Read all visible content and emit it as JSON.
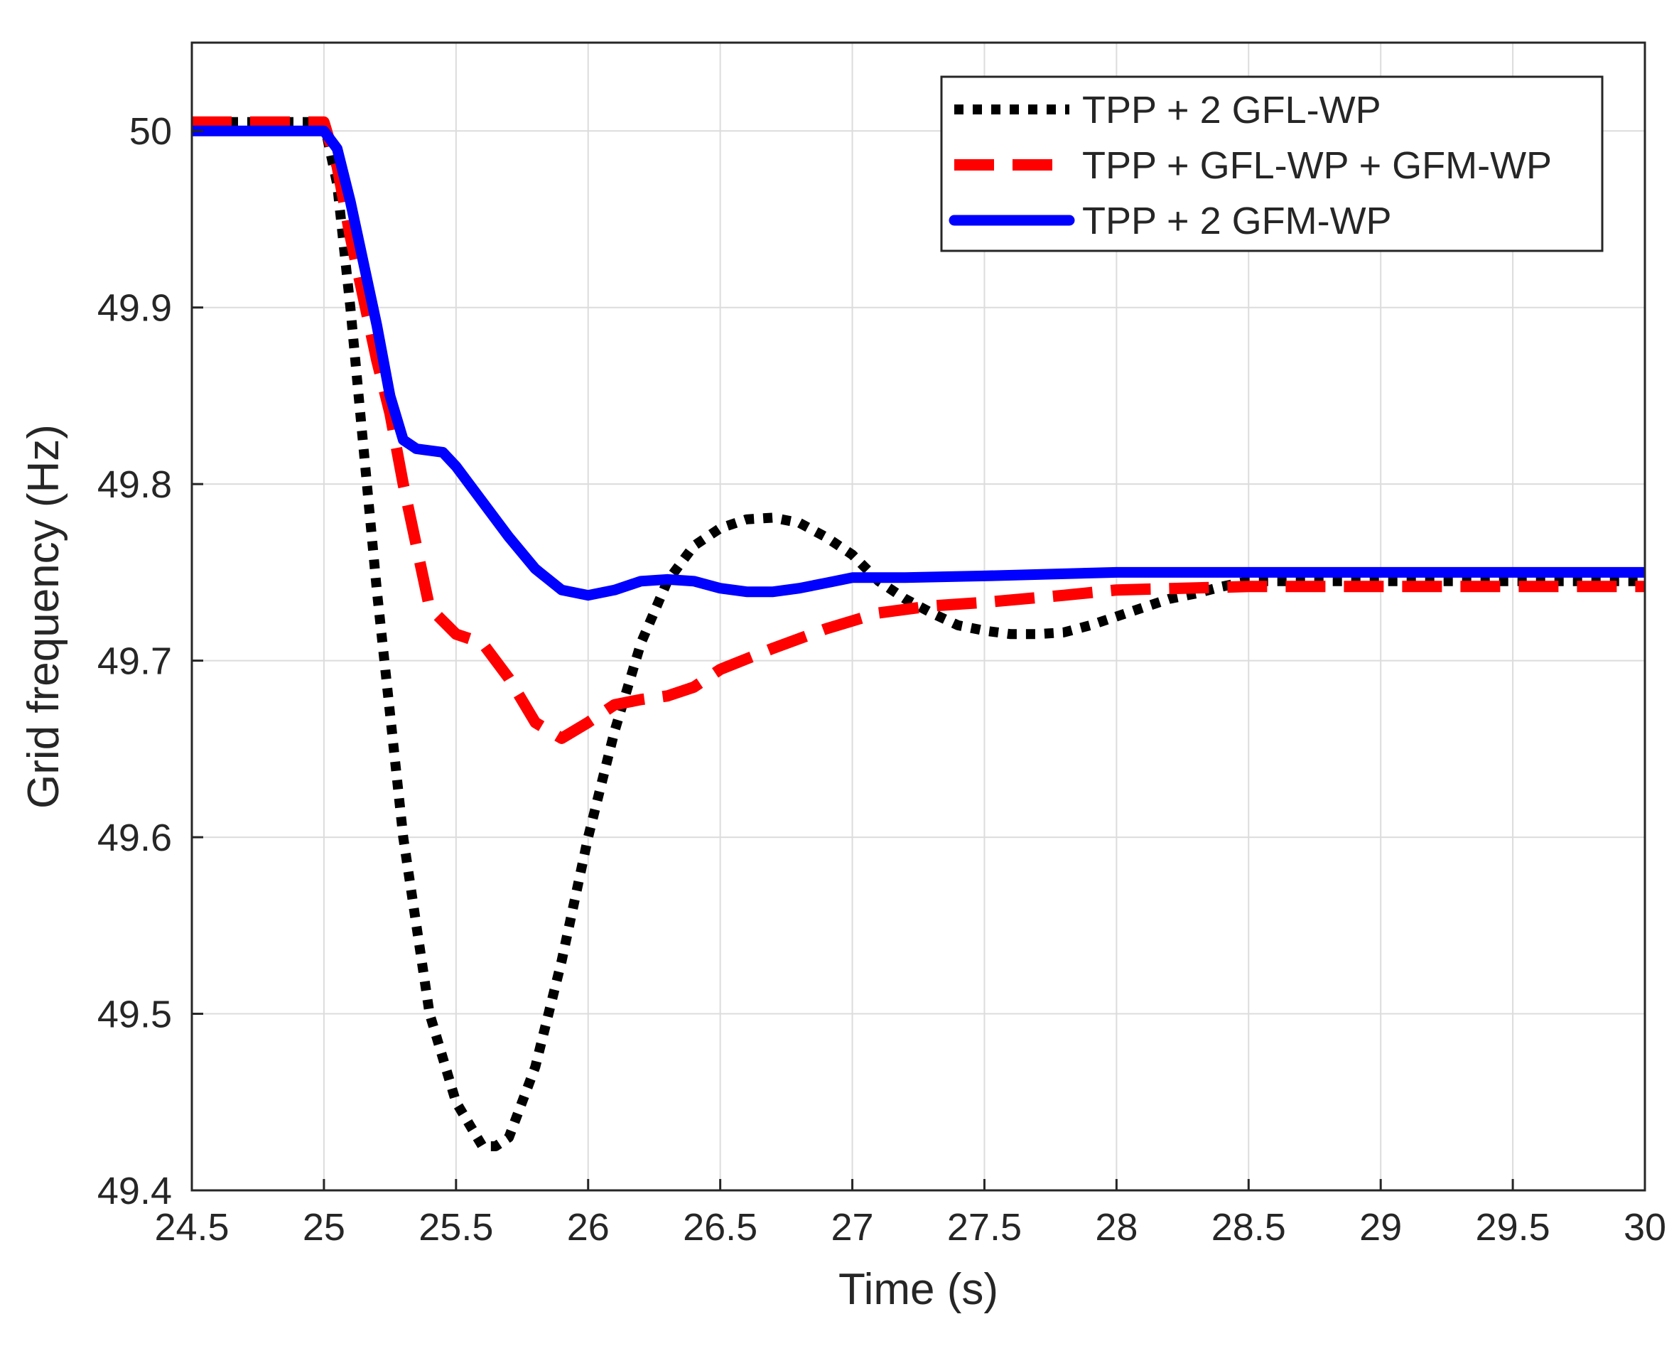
{
  "chart_data": {
    "type": "line",
    "title": "",
    "xlabel": "Time (s)",
    "ylabel": "Grid frequency (Hz)",
    "xlim": [
      24.5,
      30
    ],
    "ylim": [
      49.4,
      50.05
    ],
    "xticks": [
      "24.5",
      "25",
      "25.5",
      "26",
      "26.5",
      "27",
      "27.5",
      "28",
      "28.5",
      "29",
      "29.5",
      "30"
    ],
    "yticks": [
      "49.4",
      "49.5",
      "49.6",
      "49.7",
      "49.8",
      "49.9",
      "50"
    ],
    "grid": true,
    "legend_position": "top-right",
    "series": [
      {
        "name": "TPP + 2 GFL-WP",
        "color": "#000000",
        "style": "dotted",
        "x": [
          24.5,
          25.0,
          25.05,
          25.1,
          25.2,
          25.3,
          25.4,
          25.5,
          25.6,
          25.65,
          25.7,
          25.8,
          25.9,
          26.0,
          26.1,
          26.2,
          26.3,
          26.4,
          26.5,
          26.6,
          26.7,
          26.8,
          26.9,
          27.0,
          27.1,
          27.2,
          27.3,
          27.4,
          27.5,
          27.6,
          27.7,
          27.8,
          27.9,
          28.0,
          28.1,
          28.2,
          28.3,
          28.4,
          28.5,
          29.0,
          29.5,
          30.0
        ],
        "y": [
          50.005,
          50.005,
          49.97,
          49.9,
          49.74,
          49.6,
          49.5,
          49.45,
          49.425,
          49.425,
          49.43,
          49.47,
          49.53,
          49.6,
          49.66,
          49.71,
          49.745,
          49.765,
          49.775,
          49.78,
          49.781,
          49.778,
          49.77,
          49.76,
          49.745,
          49.735,
          49.727,
          49.72,
          49.717,
          49.715,
          49.715,
          49.716,
          49.72,
          49.725,
          49.73,
          49.735,
          49.738,
          49.742,
          49.745,
          49.745,
          49.745,
          49.745
        ]
      },
      {
        "name": "TPP + GFL-WP + GFM-WP",
        "color": "#ff0000",
        "style": "dashed",
        "x": [
          24.5,
          25.0,
          25.05,
          25.1,
          25.2,
          25.25,
          25.3,
          25.4,
          25.5,
          25.6,
          25.7,
          25.8,
          25.9,
          26.0,
          26.1,
          26.2,
          26.3,
          26.4,
          26.5,
          26.7,
          26.9,
          27.1,
          27.3,
          27.5,
          27.8,
          28.0,
          28.5,
          29.0,
          29.5,
          30.0
        ],
        "y": [
          50.005,
          50.005,
          49.98,
          49.94,
          49.87,
          49.84,
          49.8,
          49.73,
          49.715,
          49.71,
          49.69,
          49.665,
          49.656,
          49.665,
          49.675,
          49.678,
          49.68,
          49.685,
          49.695,
          49.707,
          49.718,
          49.727,
          49.731,
          49.733,
          49.737,
          49.74,
          49.742,
          49.742,
          49.742,
          49.742
        ]
      },
      {
        "name": "TPP + 2 GFM-WP",
        "color": "#0000ff",
        "style": "solid",
        "x": [
          24.5,
          25.0,
          25.05,
          25.1,
          25.2,
          25.25,
          25.3,
          25.35,
          25.45,
          25.5,
          25.6,
          25.7,
          25.8,
          25.9,
          26.0,
          26.1,
          26.2,
          26.3,
          26.4,
          26.5,
          26.6,
          26.7,
          26.8,
          26.9,
          27.0,
          27.2,
          27.5,
          28.0,
          28.5,
          29.0,
          29.5,
          30.0
        ],
        "y": [
          50.0,
          50.0,
          49.99,
          49.96,
          49.89,
          49.85,
          49.825,
          49.82,
          49.818,
          49.81,
          49.79,
          49.77,
          49.752,
          49.74,
          49.737,
          49.74,
          49.745,
          49.746,
          49.745,
          49.741,
          49.739,
          49.739,
          49.741,
          49.744,
          49.747,
          49.747,
          49.748,
          49.75,
          49.75,
          49.75,
          49.75,
          49.75
        ]
      }
    ]
  }
}
